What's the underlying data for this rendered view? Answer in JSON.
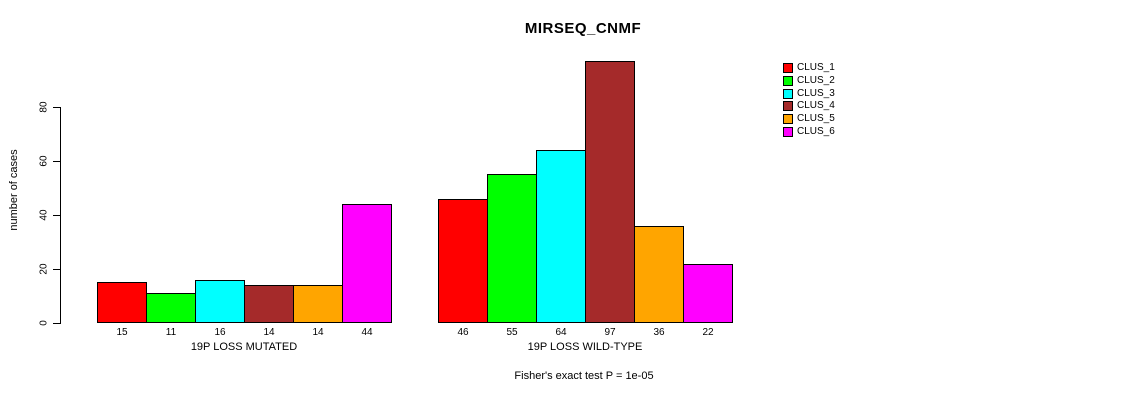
{
  "title": "MIRSEQ_CNMF",
  "y_axis": {
    "label": "number of cases",
    "ticks": [
      0,
      20,
      40,
      60,
      80
    ]
  },
  "footnote": "Fisher's exact test P = 1e-05",
  "chart_data": {
    "type": "bar",
    "title": "MIRSEQ_CNMF",
    "xlabel": "",
    "ylabel": "number of cases",
    "ylim": [
      0,
      97
    ],
    "yticks": [
      0,
      20,
      40,
      60,
      80
    ],
    "grid": false,
    "legend_position": "right",
    "categories": [
      "19P LOSS MUTATED",
      "19P LOSS WILD-TYPE"
    ],
    "series": [
      {
        "name": "CLUS_1",
        "color": "#FF0000",
        "values": [
          15,
          46
        ]
      },
      {
        "name": "CLUS_2",
        "color": "#00FF00",
        "values": [
          11,
          55
        ]
      },
      {
        "name": "CLUS_3",
        "color": "#00FFFF",
        "values": [
          16,
          64
        ]
      },
      {
        "name": "CLUS_4",
        "color": "#A52A2A",
        "values": [
          14,
          97
        ]
      },
      {
        "name": "CLUS_5",
        "color": "#FFA500",
        "values": [
          14,
          36
        ]
      },
      {
        "name": "CLUS_6",
        "color": "#FF00FF",
        "values": [
          44,
          22
        ]
      }
    ],
    "bar_value_labels": [
      [
        15,
        11,
        16,
        14,
        14,
        44
      ],
      [
        46,
        55,
        64,
        97,
        36,
        22
      ]
    ],
    "annotation": "Fisher's exact test P = 1e-05"
  }
}
